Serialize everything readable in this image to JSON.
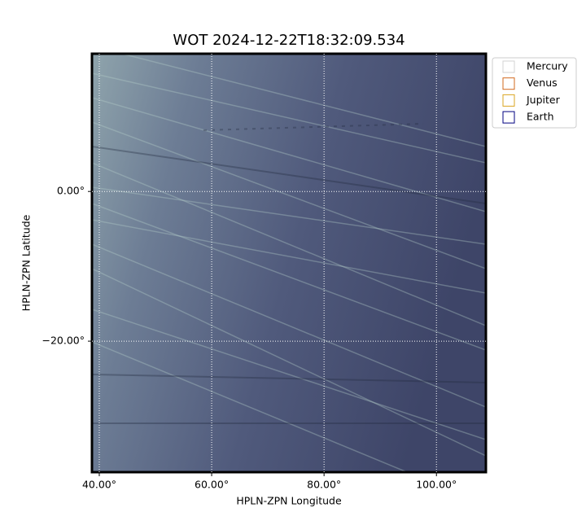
{
  "chart_data": {
    "type": "image",
    "title": "WOT 2024-12-22T18:32:09.534",
    "xlabel": "HPLN-ZPN Longitude",
    "ylabel": "HPLN-ZPN Latitude",
    "xlim": [
      38.7,
      108.8
    ],
    "xticks": [
      {
        "value": 40,
        "label": "40.00°"
      },
      {
        "value": 60,
        "label": "60.00°"
      },
      {
        "value": 80,
        "label": "80.00°"
      },
      {
        "value": 100,
        "label": "100.00°"
      }
    ],
    "ylim": [
      -37.5,
      18.4
    ],
    "yticks": [
      {
        "value": -20,
        "label": "−20.00°"
      },
      {
        "value": 0,
        "label": "0.00°"
      }
    ],
    "grid": true,
    "legend_position": "outside-upper-right",
    "series": [
      {
        "name": "Mercury",
        "color": "#d3d3d3"
      },
      {
        "name": "Venus",
        "color": "#d2691e"
      },
      {
        "name": "Jupiter",
        "color": "#daa520"
      },
      {
        "name": "Earth",
        "color": "#000080"
      }
    ]
  }
}
